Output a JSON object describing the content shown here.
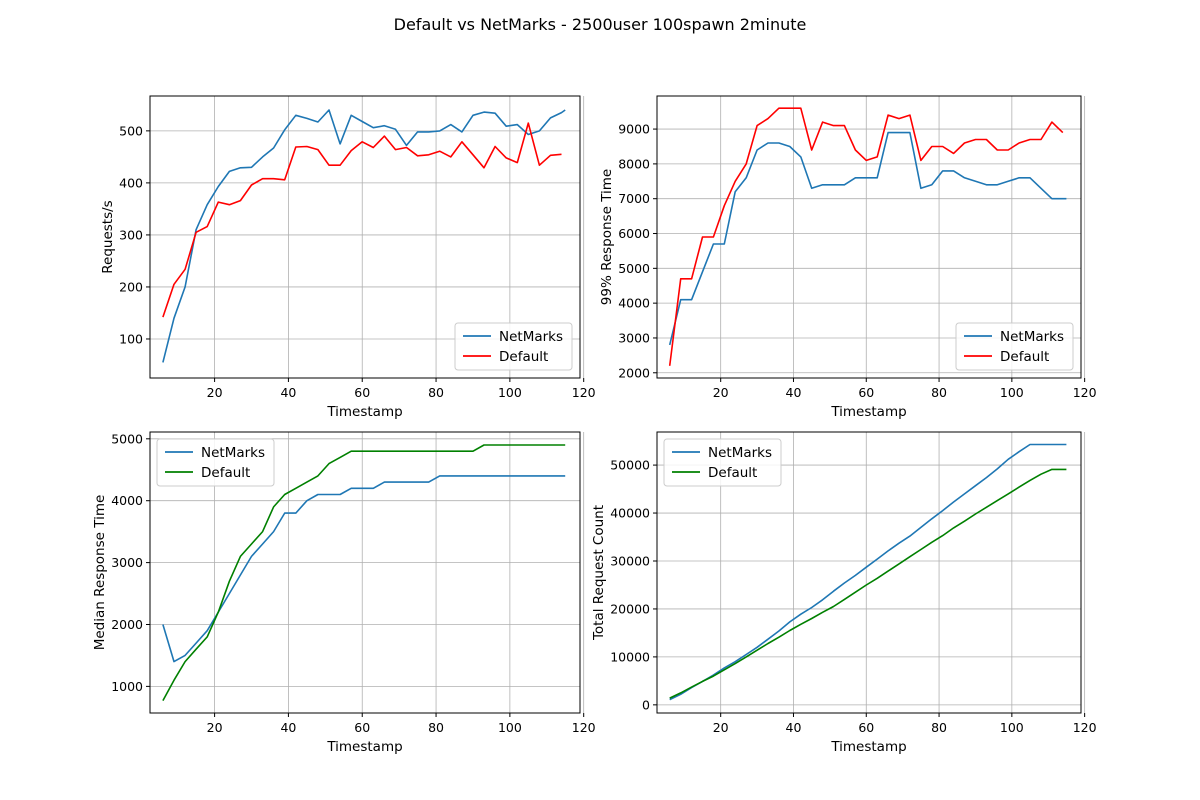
{
  "title": "Default vs NetMarks - 2500user 100spawn 2minute",
  "colors": {
    "netmarks": "#1f77b4",
    "default_red": "#ff0000",
    "default_green": "#008000",
    "grid": "#b0b0b0"
  },
  "chart_data": [
    {
      "type": "line",
      "xlabel": "Timestamp",
      "ylabel": "Requests/s",
      "xlim": [
        2.5,
        119
      ],
      "ylim": [
        25,
        567
      ],
      "xticks": [
        20,
        40,
        60,
        80,
        100,
        120
      ],
      "yticks": [
        100,
        200,
        300,
        400,
        500
      ],
      "grid": true,
      "legend_position": "lower-right",
      "series": [
        {
          "name": "NetMarks",
          "color": "#1f77b4",
          "x": [
            6,
            9,
            12,
            15,
            18,
            21,
            24,
            27,
            30,
            33,
            36,
            39,
            42,
            45,
            48,
            51,
            54,
            57,
            60,
            63,
            66,
            69,
            72,
            75,
            78,
            81,
            84,
            87,
            90,
            93,
            96,
            99,
            102,
            105,
            108,
            111,
            114,
            115
          ],
          "y": [
            55,
            140,
            200,
            310,
            358,
            393,
            422,
            429,
            430,
            450,
            467,
            502,
            530,
            524,
            517,
            540,
            475,
            530,
            518,
            506,
            510,
            503,
            472,
            498,
            498,
            500,
            512,
            498,
            530,
            536,
            534,
            509,
            512,
            493,
            500,
            525,
            535,
            540
          ]
        },
        {
          "name": "Default",
          "color": "#ff0000",
          "x": [
            6,
            9,
            12,
            15,
            18,
            21,
            24,
            27,
            30,
            33,
            36,
            39,
            42,
            45,
            48,
            51,
            54,
            57,
            60,
            63,
            66,
            69,
            72,
            75,
            78,
            81,
            84,
            87,
            90,
            93,
            96,
            99,
            102,
            105,
            108,
            111,
            114
          ],
          "y": [
            142,
            205,
            234,
            305,
            316,
            363,
            358,
            366,
            396,
            408,
            408,
            406,
            469,
            470,
            464,
            434,
            434,
            462,
            479,
            468,
            490,
            464,
            468,
            452,
            454,
            461,
            450,
            479,
            454,
            429,
            470,
            448,
            439,
            515,
            434,
            453,
            455
          ]
        }
      ]
    },
    {
      "type": "line",
      "xlabel": "Timestamp",
      "ylabel": "99% Response Time",
      "xlim": [
        2.5,
        119
      ],
      "ylim": [
        1850,
        9950
      ],
      "xticks": [
        20,
        40,
        60,
        80,
        100,
        120
      ],
      "yticks": [
        2000,
        3000,
        4000,
        5000,
        6000,
        7000,
        8000,
        9000
      ],
      "grid": true,
      "legend_position": "lower-right",
      "series": [
        {
          "name": "NetMarks",
          "color": "#1f77b4",
          "x": [
            6,
            9,
            12,
            15,
            18,
            21,
            24,
            27,
            30,
            33,
            36,
            39,
            42,
            45,
            48,
            51,
            54,
            57,
            60,
            63,
            66,
            69,
            72,
            75,
            78,
            81,
            84,
            87,
            90,
            93,
            96,
            99,
            102,
            105,
            108,
            111,
            114,
            115
          ],
          "y": [
            2800,
            4100,
            4100,
            4900,
            5700,
            5700,
            7200,
            7600,
            8400,
            8600,
            8600,
            8500,
            8200,
            7300,
            7400,
            7400,
            7400,
            7600,
            7600,
            7600,
            8900,
            8900,
            8900,
            7300,
            7400,
            7800,
            7800,
            7600,
            7500,
            7400,
            7400,
            7500,
            7600,
            7600,
            7300,
            7000,
            7000,
            7000
          ]
        },
        {
          "name": "Default",
          "color": "#ff0000",
          "x": [
            6,
            9,
            12,
            15,
            18,
            21,
            24,
            27,
            30,
            33,
            36,
            39,
            42,
            45,
            48,
            51,
            54,
            57,
            60,
            63,
            66,
            69,
            72,
            75,
            78,
            81,
            84,
            87,
            90,
            93,
            96,
            99,
            102,
            105,
            108,
            111,
            114
          ],
          "y": [
            2200,
            4700,
            4700,
            5900,
            5900,
            6800,
            7500,
            8000,
            9100,
            9300,
            9600,
            9600,
            9600,
            8400,
            9200,
            9100,
            9100,
            8400,
            8100,
            8200,
            9400,
            9300,
            9400,
            8100,
            8500,
            8500,
            8300,
            8600,
            8700,
            8700,
            8400,
            8400,
            8600,
            8700,
            8700,
            9200,
            8900
          ]
        }
      ]
    },
    {
      "type": "line",
      "xlabel": "Timestamp",
      "ylabel": "Median Response Time",
      "xlim": [
        2.5,
        119
      ],
      "ylim": [
        570,
        5110
      ],
      "xticks": [
        20,
        40,
        60,
        80,
        100,
        120
      ],
      "yticks": [
        1000,
        2000,
        3000,
        4000,
        5000
      ],
      "grid": true,
      "legend_position": "upper-left",
      "series": [
        {
          "name": "NetMarks",
          "color": "#1f77b4",
          "x": [
            6,
            9,
            12,
            15,
            18,
            21,
            24,
            27,
            30,
            33,
            36,
            39,
            42,
            45,
            48,
            51,
            54,
            57,
            60,
            63,
            66,
            69,
            72,
            75,
            78,
            81,
            84,
            87,
            90,
            93,
            96,
            99,
            102,
            105,
            108,
            111,
            115
          ],
          "y": [
            2000,
            1400,
            1500,
            1700,
            1900,
            2200,
            2500,
            2800,
            3100,
            3300,
            3500,
            3800,
            3800,
            4000,
            4100,
            4100,
            4100,
            4200,
            4200,
            4200,
            4300,
            4300,
            4300,
            4300,
            4300,
            4400,
            4400,
            4400,
            4400,
            4400,
            4400,
            4400,
            4400,
            4400,
            4400,
            4400,
            4400
          ]
        },
        {
          "name": "Default",
          "color": "#008000",
          "x": [
            6,
            9,
            12,
            15,
            18,
            21,
            24,
            27,
            30,
            33,
            36,
            39,
            42,
            45,
            48,
            51,
            54,
            57,
            60,
            63,
            66,
            69,
            72,
            75,
            78,
            81,
            84,
            87,
            90,
            93,
            96,
            99,
            102,
            105,
            108,
            111,
            115
          ],
          "y": [
            770,
            1100,
            1400,
            1600,
            1800,
            2200,
            2700,
            3100,
            3300,
            3500,
            3900,
            4100,
            4200,
            4300,
            4400,
            4600,
            4700,
            4800,
            4800,
            4800,
            4800,
            4800,
            4800,
            4800,
            4800,
            4800,
            4800,
            4800,
            4800,
            4900,
            4900,
            4900,
            4900,
            4900,
            4900,
            4900,
            4900
          ]
        }
      ]
    },
    {
      "type": "line",
      "xlabel": "Timestamp",
      "ylabel": "Total Request Count",
      "xlim": [
        2.5,
        119
      ],
      "ylim": [
        -1700,
        56900
      ],
      "xticks": [
        20,
        40,
        60,
        80,
        100,
        120
      ],
      "yticks": [
        0,
        10000,
        20000,
        30000,
        40000,
        50000
      ],
      "grid": true,
      "legend_position": "upper-left",
      "series": [
        {
          "name": "NetMarks",
          "color": "#1f77b4",
          "x": [
            6,
            9,
            12,
            15,
            18,
            21,
            24,
            27,
            30,
            33,
            36,
            39,
            42,
            45,
            48,
            51,
            54,
            57,
            60,
            63,
            66,
            69,
            72,
            75,
            78,
            81,
            84,
            87,
            90,
            93,
            96,
            99,
            102,
            105,
            108,
            111,
            115
          ],
          "y": [
            1100,
            2200,
            3600,
            4900,
            6200,
            7700,
            9000,
            10500,
            12000,
            13700,
            15400,
            17300,
            18900,
            20300,
            21900,
            23700,
            25400,
            27000,
            28700,
            30400,
            32100,
            33700,
            35200,
            37000,
            38800,
            40500,
            42300,
            44000,
            45700,
            47400,
            49200,
            51200,
            52800,
            54300,
            54300,
            54300,
            54300
          ]
        },
        {
          "name": "Default",
          "color": "#008000",
          "x": [
            6,
            9,
            12,
            15,
            18,
            21,
            24,
            27,
            30,
            33,
            36,
            39,
            42,
            45,
            48,
            51,
            54,
            57,
            60,
            63,
            66,
            69,
            72,
            75,
            78,
            81,
            84,
            87,
            90,
            93,
            96,
            99,
            102,
            105,
            108,
            111,
            115
          ],
          "y": [
            1400,
            2500,
            3700,
            4900,
            6000,
            7300,
            8600,
            10000,
            11400,
            12800,
            14100,
            15500,
            16800,
            18000,
            19300,
            20500,
            22000,
            23500,
            25000,
            26400,
            27900,
            29400,
            30900,
            32400,
            33900,
            35300,
            36900,
            38300,
            39800,
            41200,
            42600,
            44000,
            45400,
            46800,
            48100,
            49100,
            49100
          ]
        }
      ]
    }
  ]
}
